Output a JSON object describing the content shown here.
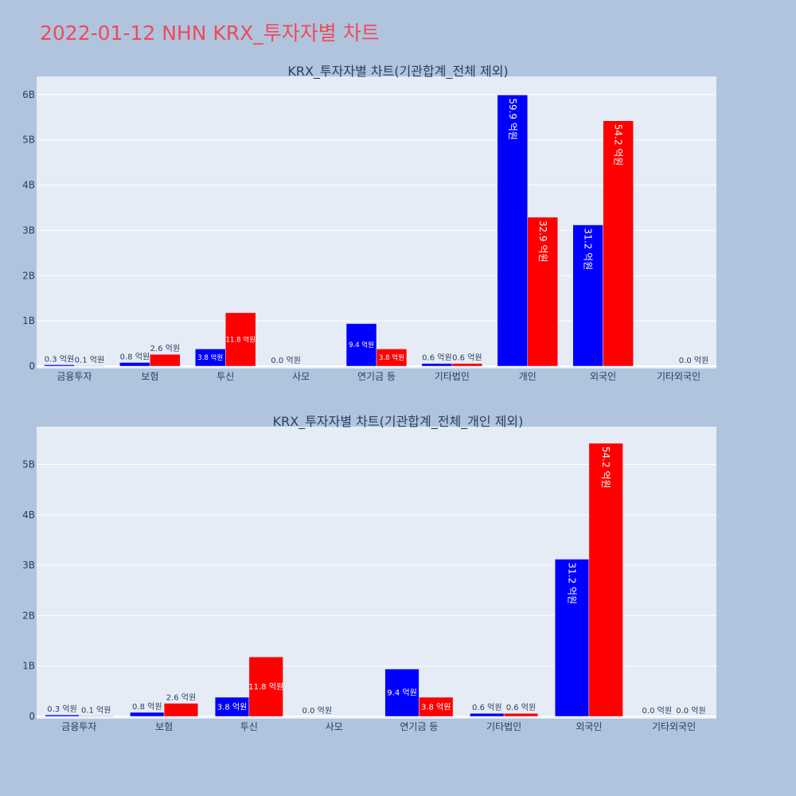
{
  "title": "2022-01-12 NHN KRX_투자자별 차트",
  "colors": {
    "buy": "#0000ff",
    "sell": "#ff0000",
    "title": "#ef4a5b",
    "background": "#b0c4de",
    "plot": "#e5ecf6"
  },
  "chart_data": [
    {
      "type": "bar",
      "title": "KRX_투자자별 차트(기관합계_전체 제외)",
      "categories": [
        "금융투자",
        "보험",
        "투신",
        "사모",
        "연기금 등",
        "기타법인",
        "개인",
        "외국인",
        "기타외국인"
      ],
      "y_ticks": [
        "0",
        "1B",
        "2B",
        "3B",
        "4B",
        "5B",
        "6B"
      ],
      "ylim": [
        0,
        6.4
      ],
      "grid": true,
      "series": [
        {
          "values": [
            0.03,
            0.08,
            0.38,
            0.0,
            0.94,
            0.06,
            5.99,
            3.12,
            null
          ],
          "labels": [
            "0.3 억원",
            "0.8 억원",
            "3.8 억원",
            "0.0 억원",
            "9.4 억원",
            "0.6 억원",
            "59.9 억원",
            "31.2 억원",
            ""
          ]
        },
        {
          "values": [
            0.01,
            0.26,
            1.18,
            null,
            0.38,
            0.06,
            3.29,
            5.42,
            0.0
          ],
          "labels": [
            "0.1 억원",
            "2.6 억원",
            "11.8 억원",
            "",
            "3.8 억원",
            "0.6 억원",
            "32.9 억원",
            "54.2 억원",
            "0.0 억원"
          ]
        }
      ]
    },
    {
      "type": "bar",
      "title": "KRX_투자자별 차트(기관합계_전체_개인 제외)",
      "categories": [
        "금융투자",
        "보험",
        "투신",
        "사모",
        "연기금 등",
        "기타법인",
        "외국인",
        "기타외국인"
      ],
      "y_ticks": [
        "0",
        "1B",
        "2B",
        "3B",
        "4B",
        "5B"
      ],
      "ylim": [
        0,
        5.75
      ],
      "grid": true,
      "series": [
        {
          "values": [
            0.03,
            0.08,
            0.38,
            0.0,
            0.94,
            0.06,
            3.12,
            0.0
          ],
          "labels": [
            "0.3 억원",
            "0.8 억원",
            "3.8 억원",
            "0.0 억원",
            "9.4 억원",
            "0.6 억원",
            "31.2 억원",
            "0.0 억원"
          ]
        },
        {
          "values": [
            0.01,
            0.26,
            1.18,
            null,
            0.38,
            0.06,
            5.42,
            0.0
          ],
          "labels": [
            "0.1 억원",
            "2.6 억원",
            "11.8 억원",
            "",
            "3.8 억원",
            "0.6 억원",
            "54.2 억원",
            "0.0 억원"
          ]
        }
      ]
    }
  ]
}
